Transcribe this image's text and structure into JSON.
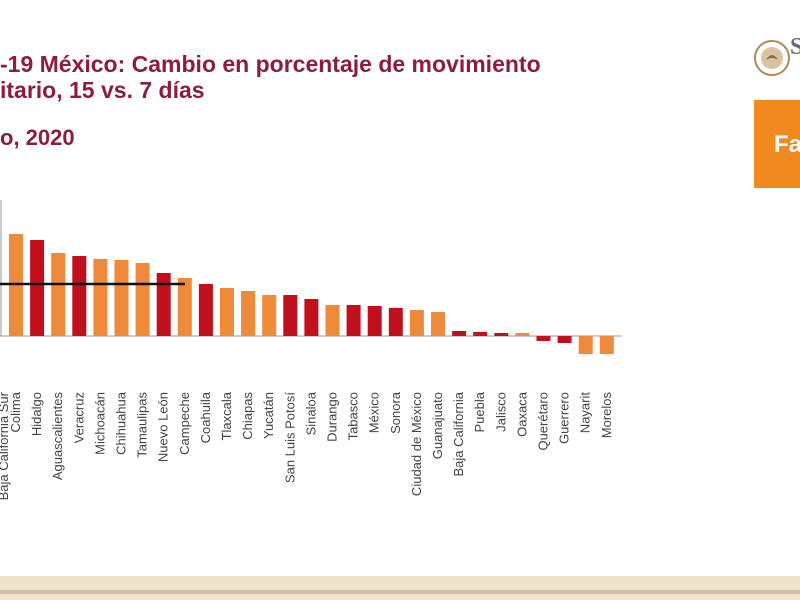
{
  "header": {
    "title_line1": "-19 México: Cambio en porcentaje de movimiento",
    "title_line2": "itario, 15 vs. 7 días",
    "title_line3": "o, 2020",
    "logo_text": "S",
    "phase_label": "Fa"
  },
  "colors": {
    "title": "#8c1d3e",
    "bar_orange": "#ee8a3a",
    "bar_red": "#c0101d",
    "phase_box": "#f08a1f",
    "reference_line": "#111111"
  },
  "icons": {
    "logo": "mexico-coat-of-arms-icon"
  },
  "chart_data": {
    "type": "bar",
    "title": "-19 México: Cambio en porcentaje de movimiento itario, 15 vs. 7 días",
    "xlabel": "",
    "ylabel": "",
    "grid": false,
    "legend": "none",
    "ylim": [
      -25,
      100
    ],
    "reference_line_value": 52,
    "categories": [
      "Colima",
      "Hidalgo",
      "Aguascalientes",
      "Veracruz",
      "Michoacán",
      "Chihuahua",
      "Tamaulipas",
      "Nuevo León",
      "Campeche",
      "Coahuila",
      "Tlaxcala",
      "Chiapas",
      "Yucatán",
      "San Luis Potosí",
      "Sinaloa",
      "Durango",
      "Tabasco",
      "México",
      "Sonora",
      "Ciudad de México",
      "Guanajuato",
      "Baja California",
      "Puebla",
      "Jalisco",
      "Oaxaca",
      "Querétaro",
      "Guerrero",
      "Nayarit",
      "Morelos"
    ],
    "cut_off_category": "Baja California Sur",
    "values": [
      102,
      96,
      83,
      80,
      77,
      76,
      73,
      63,
      58,
      52,
      48,
      45,
      41,
      41,
      37,
      31,
      31,
      30,
      28,
      26,
      24,
      5,
      4,
      3,
      3,
      -5,
      -7,
      -18,
      -18
    ],
    "bar_colors": [
      "orange",
      "red",
      "orange",
      "red",
      "orange",
      "orange",
      "orange",
      "red",
      "orange",
      "red",
      "orange",
      "orange",
      "orange",
      "red",
      "red",
      "orange",
      "red",
      "red",
      "red",
      "orange",
      "orange",
      "red",
      "red",
      "red",
      "orange",
      "red",
      "red",
      "orange",
      "orange"
    ]
  }
}
